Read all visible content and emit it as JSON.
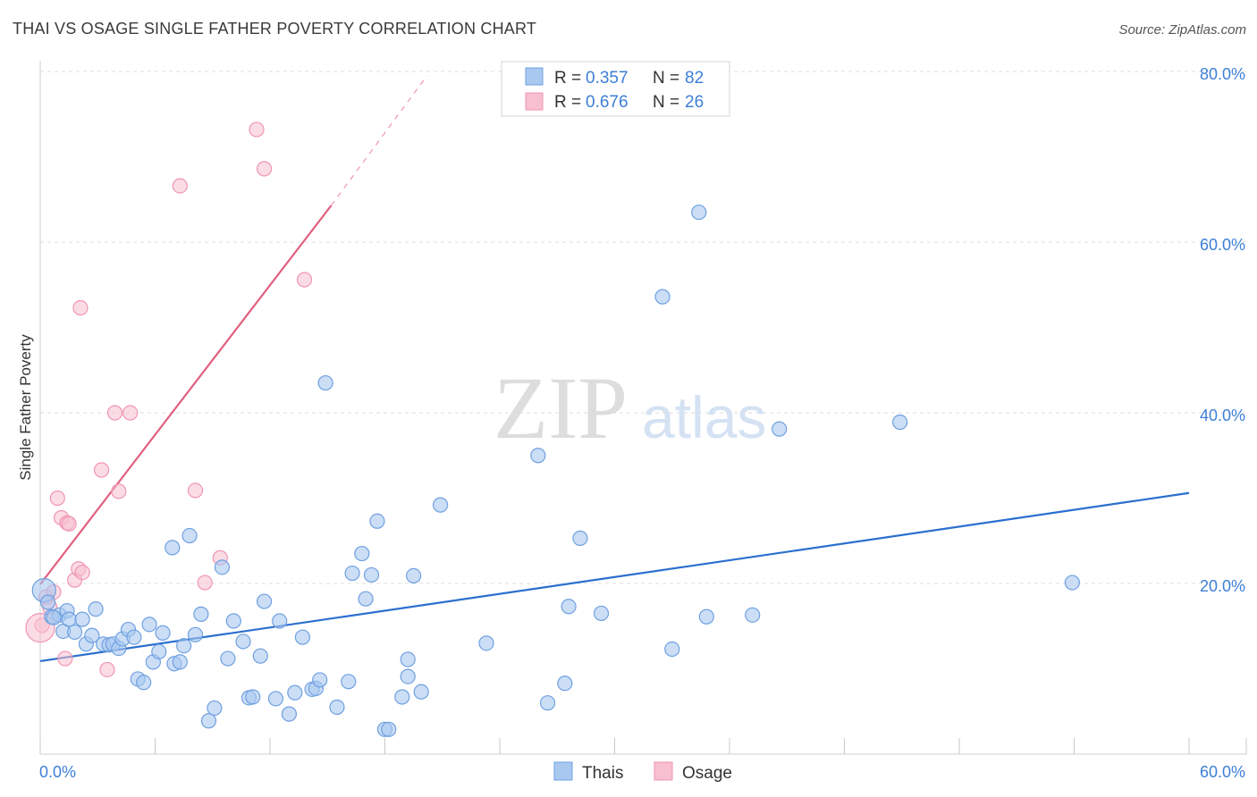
{
  "title": "THAI VS OSAGE SINGLE FATHER POVERTY CORRELATION CHART",
  "source": "Source: ZipAtlas.com",
  "watermark": {
    "part1": "ZIP",
    "part2": "atlas"
  },
  "colors": {
    "thais_fill": "#a9c8f0",
    "thais_stroke": "#6fa0e0",
    "thais_line": "#2a6fce",
    "osage_fill": "#f7bfd0",
    "osage_stroke": "#f095b2",
    "osage_line": "#e0607f",
    "tick_label": "#3d7fd6",
    "grid": "#dcdcdc"
  },
  "legend_top": {
    "rows": [
      {
        "r_label": "R = ",
        "r_value": "0.357",
        "n_label": "N = ",
        "n_value": "82"
      },
      {
        "r_label": "R = ",
        "r_value": "0.676",
        "n_label": "N = ",
        "n_value": "26"
      }
    ]
  },
  "legend_bottom": {
    "items": [
      "Thais",
      "Osage"
    ]
  },
  "chart_data": {
    "type": "scatter",
    "title": "THAI VS OSAGE SINGLE FATHER POVERTY CORRELATION CHART",
    "xlabel": "",
    "ylabel": "Single Father Poverty",
    "xlim": [
      0,
      60
    ],
    "ylim": [
      0,
      80
    ],
    "x_tick_labels": [
      "0.0%",
      "60.0%"
    ],
    "y_ticks": [
      20,
      40,
      60,
      80
    ],
    "y_tick_labels": [
      "20.0%",
      "40.0%",
      "60.0%",
      "80.0%"
    ],
    "grid": true,
    "legend_position": "top-center",
    "series": [
      {
        "name": "Thais",
        "r": 0.357,
        "n": 82,
        "trendline": {
          "x": [
            0,
            60
          ],
          "y": [
            10.9,
            30.6
          ]
        },
        "points": [
          [
            0.2,
            19.2
          ],
          [
            0.4,
            17.8
          ],
          [
            0.6,
            16.1
          ],
          [
            1.0,
            16.3
          ],
          [
            1.2,
            14.4
          ],
          [
            1.4,
            16.8
          ],
          [
            1.5,
            15.8
          ],
          [
            1.8,
            14.3
          ],
          [
            2.2,
            15.8
          ],
          [
            2.4,
            12.9
          ],
          [
            2.7,
            13.9
          ],
          [
            2.9,
            17.0
          ],
          [
            3.3,
            12.9
          ],
          [
            3.6,
            12.8
          ],
          [
            3.8,
            12.9
          ],
          [
            4.1,
            12.4
          ],
          [
            4.3,
            13.5
          ],
          [
            4.6,
            14.6
          ],
          [
            4.9,
            13.7
          ],
          [
            5.1,
            8.8
          ],
          [
            5.4,
            8.4
          ],
          [
            5.7,
            15.2
          ],
          [
            5.9,
            10.8
          ],
          [
            6.2,
            12.0
          ],
          [
            6.4,
            14.2
          ],
          [
            6.9,
            24.2
          ],
          [
            7.0,
            10.6
          ],
          [
            7.3,
            10.8
          ],
          [
            7.5,
            12.7
          ],
          [
            7.8,
            25.6
          ],
          [
            8.1,
            14.0
          ],
          [
            8.4,
            16.4
          ],
          [
            8.8,
            3.9
          ],
          [
            9.1,
            5.4
          ],
          [
            9.5,
            21.9
          ],
          [
            9.8,
            11.2
          ],
          [
            10.1,
            15.6
          ],
          [
            10.6,
            13.2
          ],
          [
            10.9,
            6.6
          ],
          [
            11.1,
            6.7
          ],
          [
            11.5,
            11.5
          ],
          [
            11.7,
            17.9
          ],
          [
            12.3,
            6.5
          ],
          [
            12.5,
            15.6
          ],
          [
            13.0,
            4.7
          ],
          [
            13.3,
            7.2
          ],
          [
            13.7,
            13.7
          ],
          [
            14.2,
            7.6
          ],
          [
            14.4,
            7.7
          ],
          [
            14.6,
            8.7
          ],
          [
            14.9,
            43.5
          ],
          [
            15.5,
            5.5
          ],
          [
            16.1,
            8.5
          ],
          [
            16.3,
            21.2
          ],
          [
            16.8,
            23.5
          ],
          [
            17.0,
            18.2
          ],
          [
            17.3,
            21.0
          ],
          [
            17.6,
            27.3
          ],
          [
            18.0,
            2.9
          ],
          [
            18.2,
            2.9
          ],
          [
            18.9,
            6.7
          ],
          [
            19.2,
            11.1
          ],
          [
            19.2,
            9.1
          ],
          [
            19.5,
            20.9
          ],
          [
            19.9,
            7.3
          ],
          [
            20.9,
            29.2
          ],
          [
            23.3,
            13.0
          ],
          [
            26.0,
            35.0
          ],
          [
            26.5,
            6.0
          ],
          [
            27.4,
            8.3
          ],
          [
            27.6,
            17.3
          ],
          [
            28.2,
            25.3
          ],
          [
            29.3,
            16.5
          ],
          [
            32.5,
            53.6
          ],
          [
            33.0,
            12.3
          ],
          [
            34.4,
            63.5
          ],
          [
            34.8,
            16.1
          ],
          [
            37.2,
            16.3
          ],
          [
            38.6,
            38.1
          ],
          [
            44.9,
            38.9
          ],
          [
            53.9,
            20.1
          ],
          [
            0.7,
            16.0
          ]
        ]
      },
      {
        "name": "Osage",
        "r": 0.676,
        "n": 26,
        "trendline": {
          "x": [
            0,
            15.2
          ],
          "y": [
            19.9,
            64.3
          ],
          "dashed_to": {
            "x": 20.2,
            "y": 79.5
          }
        },
        "points": [
          [
            0.1,
            15.1
          ],
          [
            0.3,
            18.4
          ],
          [
            0.5,
            17.2
          ],
          [
            0.7,
            19.0
          ],
          [
            0.9,
            30.0
          ],
          [
            1.1,
            27.7
          ],
          [
            1.3,
            11.2
          ],
          [
            1.4,
            27.1
          ],
          [
            1.5,
            27.0
          ],
          [
            1.8,
            20.4
          ],
          [
            2.0,
            21.7
          ],
          [
            2.1,
            52.3
          ],
          [
            2.2,
            21.3
          ],
          [
            3.2,
            33.3
          ],
          [
            3.5,
            9.9
          ],
          [
            3.9,
            40.0
          ],
          [
            4.1,
            30.8
          ],
          [
            4.7,
            40.0
          ],
          [
            7.3,
            66.6
          ],
          [
            8.1,
            30.9
          ],
          [
            8.6,
            20.1
          ],
          [
            9.4,
            23.0
          ],
          [
            11.3,
            73.2
          ],
          [
            11.7,
            68.6
          ],
          [
            13.8,
            55.6
          ],
          [
            0.0,
            14.8
          ]
        ]
      }
    ]
  }
}
